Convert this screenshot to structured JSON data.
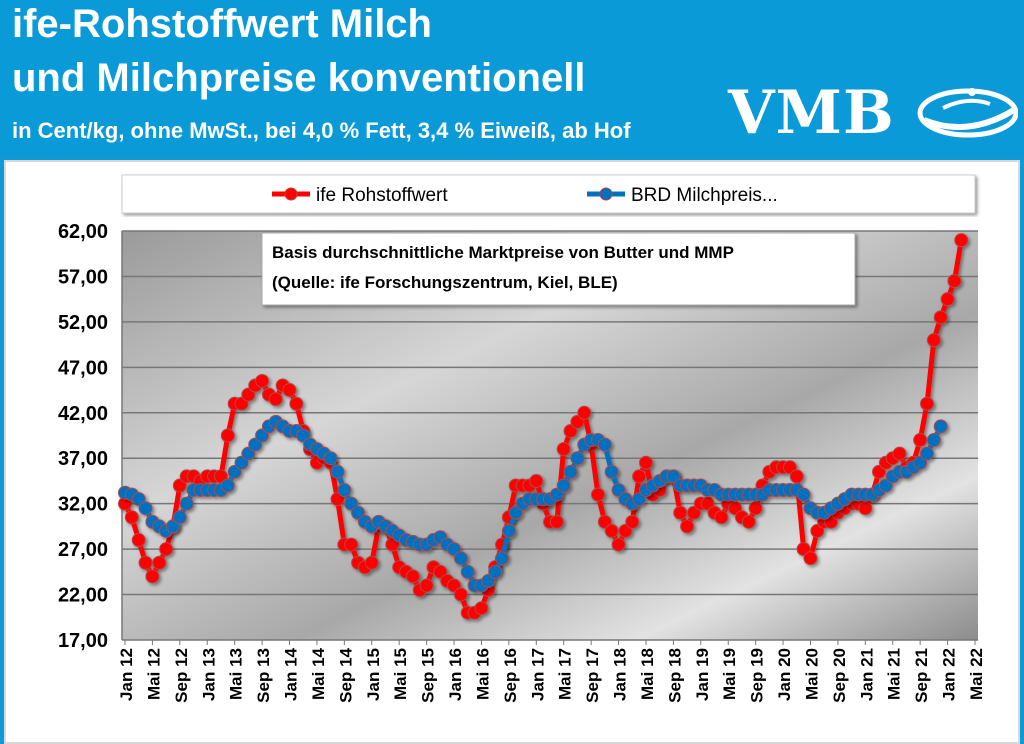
{
  "header": {
    "title_line1": "ife-Rohstoffwert Milch",
    "title_line2": "und Milchpreise konventionell",
    "subtitle": "in Cent/kg, ohne MwSt., bei 4,0 % Fett, 3,4 % Eiweiß, ab Hof",
    "logo": "VMB"
  },
  "colors": {
    "header_bg": "#0a9ad8",
    "ife": "#ff0000",
    "brd": "#0070c0"
  },
  "chart_data": {
    "type": "line",
    "title": "",
    "annotation_line1": "Basis durchschnittliche Marktpreise von Butter und MMP",
    "annotation_line2": "(Quelle: ife Forschungszentrum, Kiel, BLE)",
    "ylim": [
      17,
      62
    ],
    "yticks": [
      "17,00",
      "22,00",
      "27,00",
      "32,00",
      "37,00",
      "42,00",
      "47,00",
      "52,00",
      "57,00",
      "62,00"
    ],
    "ytick_values": [
      17,
      22,
      27,
      32,
      37,
      42,
      47,
      52,
      57,
      62
    ],
    "x_start": "Jan 12",
    "x_end": "Mai 22",
    "xticks": [
      "Jan 12",
      "Mai 12",
      "Sep 12",
      "Jan 13",
      "Mai 13",
      "Sep 13",
      "Jan 14",
      "Mai 14",
      "Sep 14",
      "Jan 15",
      "Mai 15",
      "Sep 15",
      "Jan 16",
      "Mai 16",
      "Sep 16",
      "Jan 17",
      "Mai 17",
      "Sep 17",
      "Jan 18",
      "Mai 18",
      "Sep 18",
      "Jan 19",
      "Mai 19",
      "Sep 19",
      "Jan 20",
      "Mai 20",
      "Sep 20",
      "Jan 21",
      "Mai 21",
      "Sep 21",
      "Jan 22",
      "Mai 22"
    ],
    "grid": true,
    "legend_placement": "top",
    "series": [
      {
        "name": "ife Rohstoffwert",
        "color": "#ff0000",
        "values": [
          32,
          30.5,
          28,
          25.5,
          24,
          25.5,
          27,
          29.5,
          34,
          35,
          35,
          34.5,
          35,
          35,
          35,
          39.5,
          43,
          43,
          44,
          45,
          45.5,
          44,
          43.5,
          45,
          44.5,
          43,
          40,
          38,
          36.5,
          37,
          36.5,
          32.5,
          27.5,
          27.5,
          25.5,
          25,
          25.5,
          29.5,
          29.5,
          27.5,
          25,
          24.5,
          24,
          22.5,
          23,
          25,
          24.5,
          23.5,
          23,
          22,
          20,
          20,
          20.5,
          22.5,
          25,
          27.5,
          30.5,
          34,
          34,
          34,
          34.5,
          32,
          30,
          30,
          38,
          40,
          41,
          42,
          38.5,
          33,
          30,
          29,
          27.5,
          29,
          30,
          35,
          36.5,
          33,
          33.5,
          35,
          35,
          31,
          29.5,
          31,
          32,
          32,
          31,
          30.5,
          32,
          31.5,
          30.5,
          30,
          31.5,
          34,
          35.5,
          36,
          36,
          36,
          35,
          27,
          26,
          29,
          30,
          30,
          31,
          31.5,
          32,
          32,
          31.5,
          33,
          35.5,
          36.5,
          37,
          37.5,
          36,
          36.5,
          39,
          43,
          50,
          52.5,
          54.5,
          56.5,
          61
        ]
      },
      {
        "name": "BRD Milchpreis...",
        "color": "#0070c0",
        "values": [
          33.2,
          33,
          32.5,
          31.5,
          30,
          29.5,
          29,
          29.5,
          30.5,
          32,
          33.5,
          33.5,
          33.5,
          33.5,
          33.5,
          34,
          35.5,
          36.5,
          37.5,
          38.5,
          39.5,
          40.5,
          41,
          40.5,
          40,
          40,
          39.5,
          38.5,
          38,
          37.5,
          37,
          35.5,
          33.5,
          32,
          31,
          30,
          29.5,
          30,
          29.5,
          29,
          28.5,
          28,
          27.8,
          27.5,
          27.5,
          28,
          28.3,
          27.5,
          27,
          26,
          24.5,
          23,
          23,
          23.5,
          24.5,
          26,
          29,
          31,
          32,
          32.5,
          32.5,
          32.5,
          32.5,
          33,
          34,
          35.5,
          37,
          38.5,
          39,
          39,
          38.5,
          35.5,
          33.5,
          32.5,
          32,
          32.5,
          33.5,
          34,
          34.5,
          35,
          35,
          34,
          34,
          34,
          34,
          33.5,
          33.5,
          33,
          33,
          33,
          33,
          33,
          33,
          33,
          33.5,
          33.5,
          33.5,
          33.5,
          33.5,
          33,
          31.5,
          31,
          31,
          31.5,
          32,
          32.5,
          33,
          33,
          33,
          33,
          33.5,
          34,
          35,
          35.5,
          35.5,
          36,
          36.5,
          37.5,
          39,
          40.5
        ]
      }
    ]
  }
}
